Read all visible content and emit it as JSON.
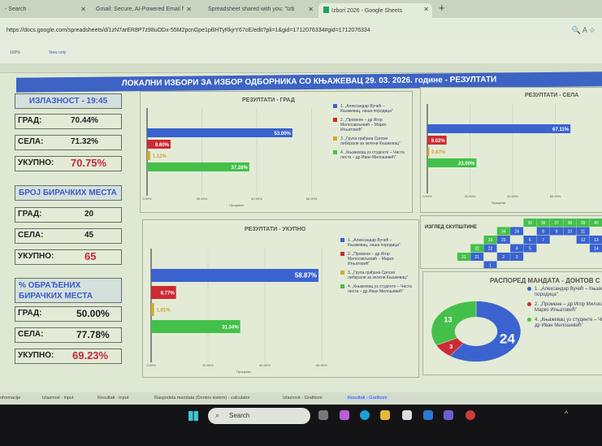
{
  "browser": {
    "tabs": [
      "- Search",
      "Gmail: Secure, AI-Powered Email f",
      "Spreadsheet shared with you: \"Izb",
      "Izbori 2026 - Google Sheets"
    ],
    "url": "https://docs.google.com/spreadsheets/d/1zN7arER8P7z98uODx-55M2pcnGpe1pBHTyRkjrY67oE/edit?pli=1&gid=1712076334#gid=1712076334"
  },
  "toolbar": {
    "zoom": "100%",
    "mode": "View only"
  },
  "banner": "ЛОКАЛНИ ИЗБОРИ ЗА ИЗБОР ОДБОРНИКА СО КЊАЖЕВАЦ  29. 03. 2026. године - РЕЗУЛТАТИ",
  "turnout": {
    "title": "ИЗЛАЗНОСТ - 19:45",
    "rows": [
      {
        "label": "ГРАД:",
        "value": "70.44%"
      },
      {
        "label": "СЕЛА:",
        "value": "71.32%"
      },
      {
        "label": "УКУПНО:",
        "value": "70.75%"
      }
    ]
  },
  "stations": {
    "title": "БРОЈ БИРАЧКИХ МЕСТА",
    "rows": [
      {
        "label": "ГРАД:",
        "value": "20"
      },
      {
        "label": "СЕЛА:",
        "value": "45"
      },
      {
        "label": "УКУПНО:",
        "value": "65"
      }
    ]
  },
  "processed": {
    "title": "% ОБРАЂЕНИХ БИРАЧКИХ МЕСТА",
    "rows": [
      {
        "label": "ГРАД:",
        "value": "50.00%"
      },
      {
        "label": "СЕЛА:",
        "value": "77.78%"
      },
      {
        "label": "УКУПНО:",
        "value": "69.23%"
      }
    ]
  },
  "parties": [
    "1. „Александар Вучић – Књажевац, наша породица\"",
    "2. „Промене – др Игор Милосављевић – Марко Игњатовић\"",
    "3. „Група грађана Српски либерали за зелени Књажевац\"",
    "4. „Књажевац уз студенте – Чиста листа – др Иван Милошевић\""
  ],
  "colors": [
    "#3a63d0",
    "#cc2b35",
    "#d4a72c",
    "#44c04a"
  ],
  "chart_data": [
    {
      "type": "bar",
      "title": "РЕЗУЛТАТИ - ГРАД",
      "xlabel": "Проценат",
      "xlim": [
        0,
        80
      ],
      "ticks": [
        "0.00%",
        "20.00%",
        "40.00%",
        "60.00%"
      ],
      "values": [
        53.0,
        8.6,
        1.12,
        37.28
      ],
      "labels": [
        "53.00%",
        "8.60%",
        "1.12%",
        "37.28%"
      ],
      "legend": "right"
    },
    {
      "type": "bar",
      "title": "РЕЗУЛТАТИ - СЕЛА",
      "xlabel": "Проценат",
      "xlim": [
        0,
        80
      ],
      "ticks": [
        "0.00%",
        "20.00%",
        "40.00%",
        "60.00%"
      ],
      "values": [
        67.11,
        9.02,
        0.87,
        23.0
      ],
      "labels": [
        "67.11%",
        "9.02%",
        "0.87%",
        "23.00%"
      ]
    },
    {
      "type": "bar",
      "title": "РЕЗУЛТАТИ - УКУПНО",
      "xlabel": "Проценат",
      "xlim": [
        0,
        80
      ],
      "ticks": [
        "0.00%",
        "20.00%",
        "40.00%",
        "60.00%"
      ],
      "values": [
        58.87,
        8.77,
        1.01,
        31.34
      ],
      "labels": [
        "58.87%",
        "8.77%",
        "1.01%",
        "31.34%"
      ],
      "legend": "right"
    },
    {
      "type": "pie",
      "title": "РАСПОРЕД МАНДАТА - ДОНТОВ С",
      "categories": [
        "1",
        "2",
        "4"
      ],
      "values": [
        24,
        3,
        13
      ],
      "legend": [
        "1. „Александар Вучић – Књажевац, наша породица\"",
        "2. „Промене – др Игор Милосављевић – Марко Игњатовић\"",
        "4. „Књажевац уз студенте – Чиста листа – др Иван Милошевић\""
      ]
    }
  ],
  "assembly": {
    "title": "ИЗГЛЕД СКУПШТИНЕ",
    "blue": [
      1,
      2,
      3,
      4,
      5,
      6,
      7,
      8,
      9,
      10,
      11,
      12,
      13,
      14,
      21,
      22,
      23,
      24
    ],
    "green": [
      31,
      32,
      33,
      34,
      35,
      36,
      37,
      38,
      39,
      40
    ]
  },
  "sheet_tabs": [
    "nformacije",
    "Izlaznost - input",
    "Resultati - input",
    "Raspodela mandata (Dontov sistem) - calculator",
    "Izlaznost - Grafikoni",
    "Resultati - Grafikoni"
  ],
  "taskbar": {
    "search": "Search"
  }
}
